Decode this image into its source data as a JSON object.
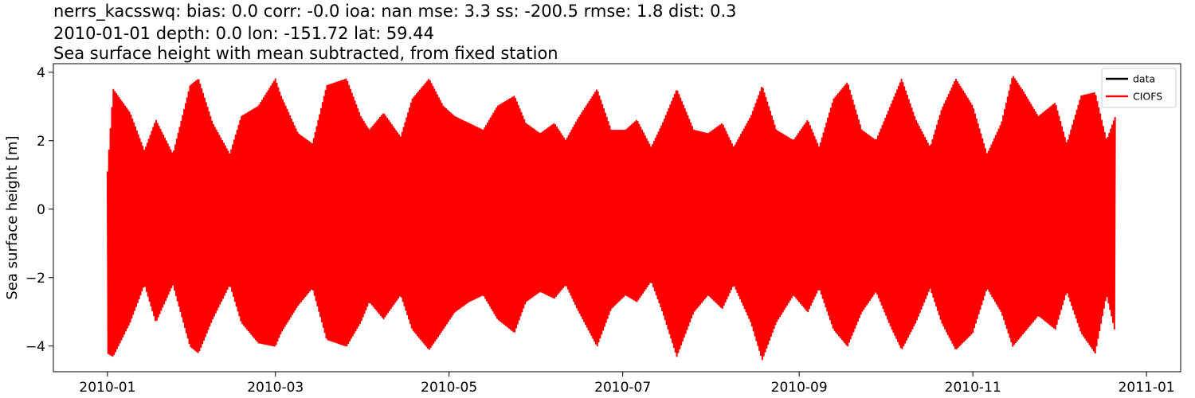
{
  "chart_data": {
    "type": "line",
    "title_lines": [
      "nerrs_kacsswq: bias: 0.0  corr: -0.0  ioa: nan  mse: 3.3  ss: -200.5  rmse: 1.8  dist: 0.3",
      "2010-01-01 depth: 0.0 lon: -151.72 lat: 59.44",
      "Sea surface height with mean subtracted, from fixed station"
    ],
    "xlabel": "",
    "ylabel": "Sea surface height [m]",
    "x_range": [
      "2009-12-13",
      "2011-01-13"
    ],
    "ylim": [
      -4.75,
      4.25
    ],
    "x_ticks": [
      {
        "date": "2010-01-01",
        "label": "2010-01"
      },
      {
        "date": "2010-03-01",
        "label": "2010-03"
      },
      {
        "date": "2010-05-01",
        "label": "2010-05"
      },
      {
        "date": "2010-07-01",
        "label": "2010-07"
      },
      {
        "date": "2010-09-01",
        "label": "2010-09"
      },
      {
        "date": "2010-11-01",
        "label": "2010-11"
      },
      {
        "date": "2011-01-01",
        "label": "2011-01"
      }
    ],
    "y_ticks": [
      {
        "value": -4,
        "label": "−4"
      },
      {
        "value": -2,
        "label": "−2"
      },
      {
        "value": 0,
        "label": "0"
      },
      {
        "value": 2,
        "label": "2"
      },
      {
        "value": 4,
        "label": "4"
      }
    ],
    "grid": false,
    "legend_position": "top-right",
    "series": [
      {
        "name": "data",
        "color": "#000000",
        "x": [],
        "y": []
      },
      {
        "name": "CIOFS",
        "color": "#ff0000",
        "time_range": [
          "2010-01-01",
          "2010-12-21"
        ],
        "envelope": {
          "dates": [
            "2010-01-01",
            "2010-01-03",
            "2010-01-09",
            "2010-01-14",
            "2010-01-18",
            "2010-01-24",
            "2010-01-30",
            "2010-02-02",
            "2010-02-07",
            "2010-02-13",
            "2010-02-17",
            "2010-02-23",
            "2010-03-01",
            "2010-03-03",
            "2010-03-09",
            "2010-03-14",
            "2010-03-19",
            "2010-03-26",
            "2010-03-31",
            "2010-04-03",
            "2010-04-08",
            "2010-04-14",
            "2010-04-18",
            "2010-04-24",
            "2010-04-29",
            "2010-05-03",
            "2010-05-08",
            "2010-05-13",
            "2010-05-18",
            "2010-05-24",
            "2010-05-28",
            "2010-06-02",
            "2010-06-07",
            "2010-06-11",
            "2010-06-15",
            "2010-06-22",
            "2010-06-27",
            "2010-07-02",
            "2010-07-06",
            "2010-07-11",
            "2010-07-15",
            "2010-07-20",
            "2010-07-26",
            "2010-07-31",
            "2010-08-05",
            "2010-08-09",
            "2010-08-15",
            "2010-08-19",
            "2010-08-24",
            "2010-08-30",
            "2010-09-04",
            "2010-09-08",
            "2010-09-13",
            "2010-09-18",
            "2010-09-23",
            "2010-09-28",
            "2010-10-03",
            "2010-10-07",
            "2010-10-12",
            "2010-10-17",
            "2010-10-21",
            "2010-10-26",
            "2010-11-01",
            "2010-11-06",
            "2010-11-11",
            "2010-11-15",
            "2010-11-19",
            "2010-11-24",
            "2010-11-30",
            "2010-12-04",
            "2010-12-09",
            "2010-12-14",
            "2010-12-18",
            "2010-12-21"
          ],
          "max": [
            1.1,
            3.5,
            2.8,
            1.7,
            2.6,
            1.6,
            3.6,
            3.8,
            2.5,
            1.6,
            2.7,
            3.0,
            3.8,
            3.3,
            2.2,
            1.9,
            3.6,
            3.8,
            2.7,
            2.3,
            2.8,
            2.1,
            3.2,
            3.8,
            3.0,
            2.7,
            2.5,
            2.3,
            3.0,
            3.3,
            2.5,
            2.2,
            2.5,
            2.0,
            2.6,
            3.5,
            2.3,
            2.3,
            2.6,
            1.8,
            2.5,
            3.5,
            2.3,
            2.2,
            2.5,
            1.8,
            2.7,
            3.6,
            2.3,
            2.0,
            2.6,
            1.8,
            3.2,
            3.7,
            2.3,
            2.0,
            3.0,
            3.8,
            2.6,
            1.8,
            2.9,
            3.8,
            3.0,
            1.6,
            2.5,
            3.9,
            3.4,
            2.7,
            3.1,
            1.9,
            3.3,
            3.4,
            2.0,
            2.7
          ],
          "min": [
            -4.2,
            -4.3,
            -3.3,
            -2.2,
            -3.3,
            -2.2,
            -4.0,
            -4.2,
            -3.2,
            -2.2,
            -3.3,
            -3.9,
            -4.0,
            -3.6,
            -2.8,
            -2.3,
            -3.8,
            -4.0,
            -3.3,
            -2.7,
            -3.2,
            -2.5,
            -3.5,
            -4.1,
            -3.5,
            -3.0,
            -2.7,
            -2.5,
            -3.2,
            -3.6,
            -2.7,
            -2.4,
            -2.6,
            -2.2,
            -2.9,
            -4.0,
            -2.9,
            -2.5,
            -2.7,
            -2.1,
            -3.0,
            -4.3,
            -3.0,
            -2.5,
            -2.9,
            -2.2,
            -3.3,
            -4.4,
            -3.3,
            -2.5,
            -3.0,
            -2.3,
            -3.5,
            -4.0,
            -3.0,
            -2.4,
            -3.4,
            -4.1,
            -3.3,
            -2.3,
            -3.3,
            -4.1,
            -3.6,
            -2.3,
            -3.0,
            -4.0,
            -3.6,
            -3.1,
            -3.5,
            -2.4,
            -3.6,
            -4.2,
            -2.5,
            -3.6
          ]
        }
      }
    ]
  }
}
